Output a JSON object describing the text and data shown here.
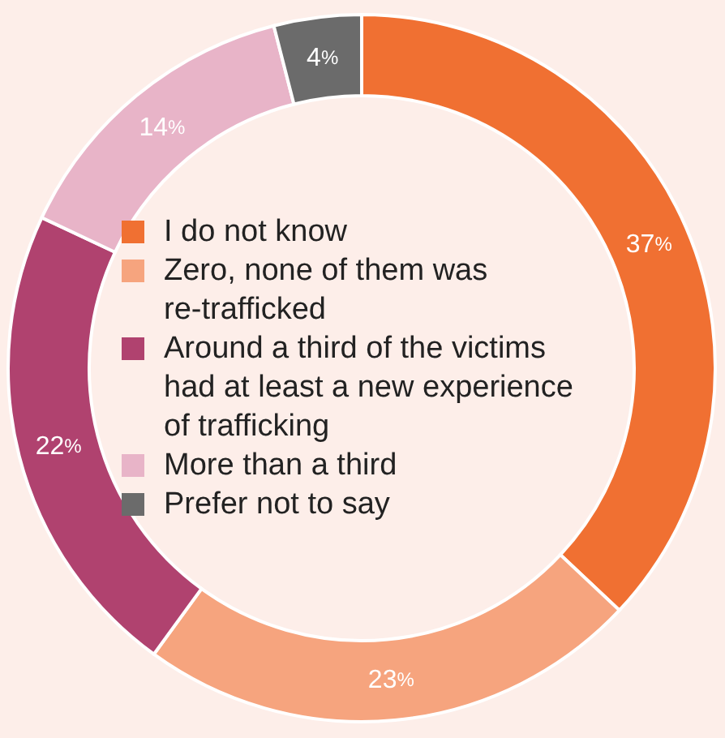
{
  "chart_data": {
    "type": "donut",
    "categories": [
      "I do not know",
      "Zero, none of them was re-trafficked",
      "Around a third of the victims had at least a new experience of trafficking",
      "More than a third",
      "Prefer not to say"
    ],
    "values": [
      37,
      23,
      22,
      14,
      4
    ],
    "value_labels": [
      "37%",
      "23%",
      "22%",
      "14%",
      "4%"
    ],
    "colors": [
      "#f07032",
      "#f6a47e",
      "#b0426f",
      "#e8b4c8",
      "#6b6b6b"
    ],
    "legend": "center"
  }
}
